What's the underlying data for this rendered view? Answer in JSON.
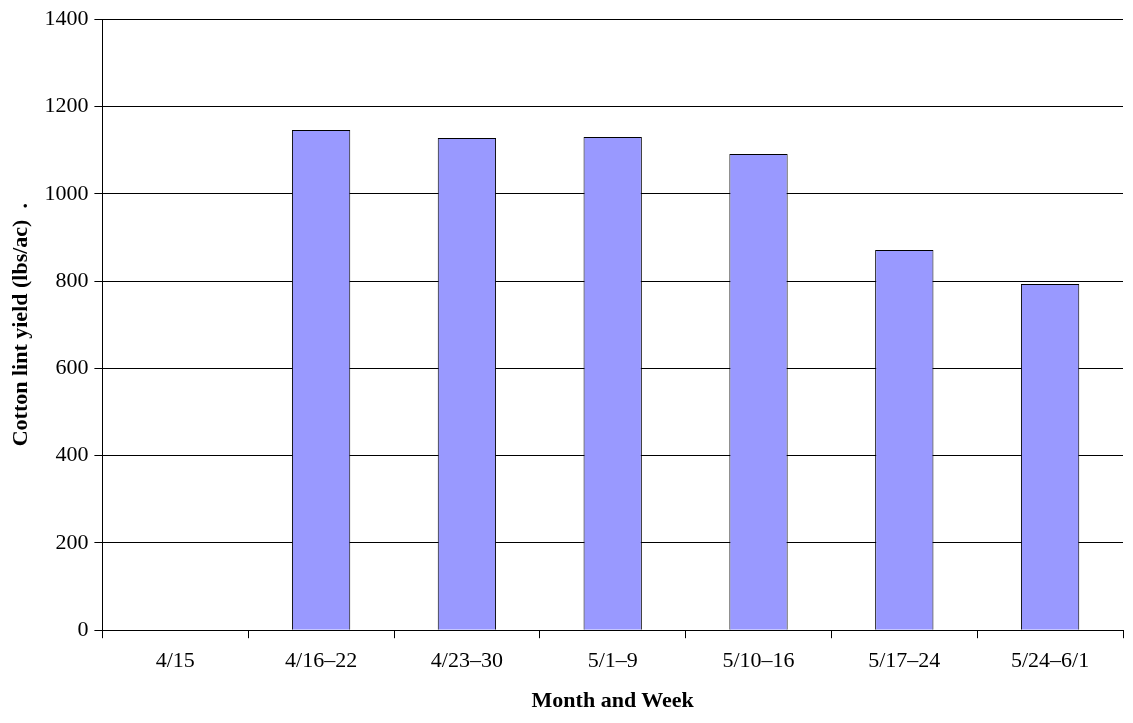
{
  "chart_data": {
    "type": "bar",
    "xlabel": "Month and Week",
    "ylabel": "Cotton lint yield (lbs/ac)  .",
    "categories": [
      "4/15",
      "4/16–22",
      "4/23–30",
      "5/1–9",
      "5/10–16",
      "5/17–24",
      "5/24–6/1"
    ],
    "values": [
      null,
      1146,
      1128,
      1130,
      1091,
      871,
      793
    ],
    "color": "#9999ff",
    "ylim": [
      0,
      1400
    ],
    "yticks": [
      0,
      200,
      400,
      600,
      800,
      1000,
      1200,
      1400
    ],
    "grid": "y",
    "legend": false
  }
}
